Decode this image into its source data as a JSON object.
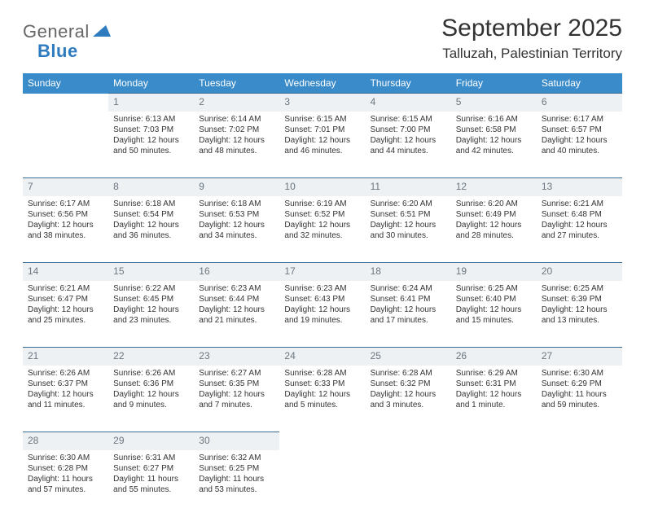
{
  "brand": {
    "name_gray": "General",
    "name_blue": "Blue"
  },
  "title": "September 2025",
  "location": "Talluzah, Palestinian Territory",
  "colors": {
    "header_bg": "#3a8bc9",
    "header_text": "#ffffff",
    "daynum_bg": "#eef1f3",
    "daynum_text": "#6b7680",
    "row_border": "#3a6a8f",
    "body_text": "#333333",
    "logo_blue": "#2f7bbf"
  },
  "weekdays": [
    "Sunday",
    "Monday",
    "Tuesday",
    "Wednesday",
    "Thursday",
    "Friday",
    "Saturday"
  ],
  "weeks": [
    {
      "nums": [
        "",
        "1",
        "2",
        "3",
        "4",
        "5",
        "6"
      ],
      "cells": [
        null,
        {
          "sunrise": "Sunrise: 6:13 AM",
          "sunset": "Sunset: 7:03 PM",
          "daylight": "Daylight: 12 hours and 50 minutes."
        },
        {
          "sunrise": "Sunrise: 6:14 AM",
          "sunset": "Sunset: 7:02 PM",
          "daylight": "Daylight: 12 hours and 48 minutes."
        },
        {
          "sunrise": "Sunrise: 6:15 AM",
          "sunset": "Sunset: 7:01 PM",
          "daylight": "Daylight: 12 hours and 46 minutes."
        },
        {
          "sunrise": "Sunrise: 6:15 AM",
          "sunset": "Sunset: 7:00 PM",
          "daylight": "Daylight: 12 hours and 44 minutes."
        },
        {
          "sunrise": "Sunrise: 6:16 AM",
          "sunset": "Sunset: 6:58 PM",
          "daylight": "Daylight: 12 hours and 42 minutes."
        },
        {
          "sunrise": "Sunrise: 6:17 AM",
          "sunset": "Sunset: 6:57 PM",
          "daylight": "Daylight: 12 hours and 40 minutes."
        }
      ]
    },
    {
      "nums": [
        "7",
        "8",
        "9",
        "10",
        "11",
        "12",
        "13"
      ],
      "cells": [
        {
          "sunrise": "Sunrise: 6:17 AM",
          "sunset": "Sunset: 6:56 PM",
          "daylight": "Daylight: 12 hours and 38 minutes."
        },
        {
          "sunrise": "Sunrise: 6:18 AM",
          "sunset": "Sunset: 6:54 PM",
          "daylight": "Daylight: 12 hours and 36 minutes."
        },
        {
          "sunrise": "Sunrise: 6:18 AM",
          "sunset": "Sunset: 6:53 PM",
          "daylight": "Daylight: 12 hours and 34 minutes."
        },
        {
          "sunrise": "Sunrise: 6:19 AM",
          "sunset": "Sunset: 6:52 PM",
          "daylight": "Daylight: 12 hours and 32 minutes."
        },
        {
          "sunrise": "Sunrise: 6:20 AM",
          "sunset": "Sunset: 6:51 PM",
          "daylight": "Daylight: 12 hours and 30 minutes."
        },
        {
          "sunrise": "Sunrise: 6:20 AM",
          "sunset": "Sunset: 6:49 PM",
          "daylight": "Daylight: 12 hours and 28 minutes."
        },
        {
          "sunrise": "Sunrise: 6:21 AM",
          "sunset": "Sunset: 6:48 PM",
          "daylight": "Daylight: 12 hours and 27 minutes."
        }
      ]
    },
    {
      "nums": [
        "14",
        "15",
        "16",
        "17",
        "18",
        "19",
        "20"
      ],
      "cells": [
        {
          "sunrise": "Sunrise: 6:21 AM",
          "sunset": "Sunset: 6:47 PM",
          "daylight": "Daylight: 12 hours and 25 minutes."
        },
        {
          "sunrise": "Sunrise: 6:22 AM",
          "sunset": "Sunset: 6:45 PM",
          "daylight": "Daylight: 12 hours and 23 minutes."
        },
        {
          "sunrise": "Sunrise: 6:23 AM",
          "sunset": "Sunset: 6:44 PM",
          "daylight": "Daylight: 12 hours and 21 minutes."
        },
        {
          "sunrise": "Sunrise: 6:23 AM",
          "sunset": "Sunset: 6:43 PM",
          "daylight": "Daylight: 12 hours and 19 minutes."
        },
        {
          "sunrise": "Sunrise: 6:24 AM",
          "sunset": "Sunset: 6:41 PM",
          "daylight": "Daylight: 12 hours and 17 minutes."
        },
        {
          "sunrise": "Sunrise: 6:25 AM",
          "sunset": "Sunset: 6:40 PM",
          "daylight": "Daylight: 12 hours and 15 minutes."
        },
        {
          "sunrise": "Sunrise: 6:25 AM",
          "sunset": "Sunset: 6:39 PM",
          "daylight": "Daylight: 12 hours and 13 minutes."
        }
      ]
    },
    {
      "nums": [
        "21",
        "22",
        "23",
        "24",
        "25",
        "26",
        "27"
      ],
      "cells": [
        {
          "sunrise": "Sunrise: 6:26 AM",
          "sunset": "Sunset: 6:37 PM",
          "daylight": "Daylight: 12 hours and 11 minutes."
        },
        {
          "sunrise": "Sunrise: 6:26 AM",
          "sunset": "Sunset: 6:36 PM",
          "daylight": "Daylight: 12 hours and 9 minutes."
        },
        {
          "sunrise": "Sunrise: 6:27 AM",
          "sunset": "Sunset: 6:35 PM",
          "daylight": "Daylight: 12 hours and 7 minutes."
        },
        {
          "sunrise": "Sunrise: 6:28 AM",
          "sunset": "Sunset: 6:33 PM",
          "daylight": "Daylight: 12 hours and 5 minutes."
        },
        {
          "sunrise": "Sunrise: 6:28 AM",
          "sunset": "Sunset: 6:32 PM",
          "daylight": "Daylight: 12 hours and 3 minutes."
        },
        {
          "sunrise": "Sunrise: 6:29 AM",
          "sunset": "Sunset: 6:31 PM",
          "daylight": "Daylight: 12 hours and 1 minute."
        },
        {
          "sunrise": "Sunrise: 6:30 AM",
          "sunset": "Sunset: 6:29 PM",
          "daylight": "Daylight: 11 hours and 59 minutes."
        }
      ]
    },
    {
      "nums": [
        "28",
        "29",
        "30",
        "",
        "",
        "",
        ""
      ],
      "cells": [
        {
          "sunrise": "Sunrise: 6:30 AM",
          "sunset": "Sunset: 6:28 PM",
          "daylight": "Daylight: 11 hours and 57 minutes."
        },
        {
          "sunrise": "Sunrise: 6:31 AM",
          "sunset": "Sunset: 6:27 PM",
          "daylight": "Daylight: 11 hours and 55 minutes."
        },
        {
          "sunrise": "Sunrise: 6:32 AM",
          "sunset": "Sunset: 6:25 PM",
          "daylight": "Daylight: 11 hours and 53 minutes."
        },
        null,
        null,
        null,
        null
      ]
    }
  ]
}
